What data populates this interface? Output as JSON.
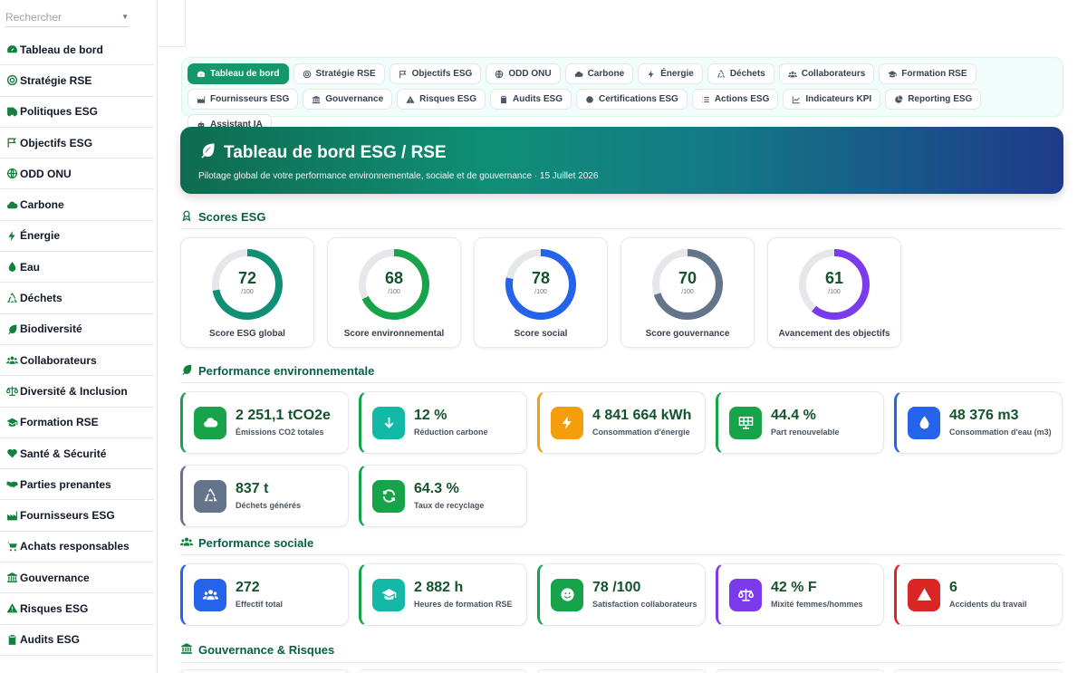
{
  "sidebar": {
    "search_placeholder": "Rechercher",
    "items": [
      {
        "label": "Tableau de bord",
        "icon": "gauge-icon"
      },
      {
        "label": "Stratégie RSE",
        "icon": "target-icon"
      },
      {
        "label": "Politiques ESG",
        "icon": "policy-icon"
      },
      {
        "label": "Objectifs ESG",
        "icon": "flag-icon"
      },
      {
        "label": "ODD ONU",
        "icon": "globe-icon"
      },
      {
        "label": "Carbone",
        "icon": "cloud-icon"
      },
      {
        "label": "Énergie",
        "icon": "bolt-icon"
      },
      {
        "label": "Eau",
        "icon": "droplet-icon"
      },
      {
        "label": "Déchets",
        "icon": "recycle-icon"
      },
      {
        "label": "Biodiversité",
        "icon": "leaf-icon"
      },
      {
        "label": "Collaborateurs",
        "icon": "users-icon"
      },
      {
        "label": "Diversité & Inclusion",
        "icon": "scale-icon"
      },
      {
        "label": "Formation RSE",
        "icon": "graduation-cap-icon"
      },
      {
        "label": "Santé & Sécurité",
        "icon": "heart-pulse-icon"
      },
      {
        "label": "Parties prenantes",
        "icon": "handshake-icon"
      },
      {
        "label": "Fournisseurs ESG",
        "icon": "industry-icon"
      },
      {
        "label": "Achats responsables",
        "icon": "cart-icon"
      },
      {
        "label": "Gouvernance",
        "icon": "landmark-icon"
      },
      {
        "label": "Risques ESG",
        "icon": "warning-icon"
      },
      {
        "label": "Audits ESG",
        "icon": "clipboard-check-icon"
      }
    ]
  },
  "tabs": [
    {
      "label": "Tableau de bord",
      "icon": "gauge-icon",
      "active": true
    },
    {
      "label": "Stratégie RSE",
      "icon": "target-icon"
    },
    {
      "label": "Objectifs ESG",
      "icon": "flag-icon"
    },
    {
      "label": "ODD ONU",
      "icon": "globe-icon"
    },
    {
      "label": "Carbone",
      "icon": "cloud-icon"
    },
    {
      "label": "Énergie",
      "icon": "bolt-icon"
    },
    {
      "label": "Déchets",
      "icon": "recycle-icon"
    },
    {
      "label": "Collaborateurs",
      "icon": "users-icon"
    },
    {
      "label": "Formation RSE",
      "icon": "graduation-cap-icon"
    },
    {
      "label": "Fournisseurs ESG",
      "icon": "industry-icon"
    },
    {
      "label": "Gouvernance",
      "icon": "landmark-icon"
    },
    {
      "label": "Risques ESG",
      "icon": "warning-icon"
    },
    {
      "label": "Audits ESG",
      "icon": "clipboard-check-icon"
    },
    {
      "label": "Certifications ESG",
      "icon": "certificate-icon"
    },
    {
      "label": "Actions ESG",
      "icon": "list-icon"
    },
    {
      "label": "Indicateurs KPI",
      "icon": "chart-line-icon"
    },
    {
      "label": "Reporting ESG",
      "icon": "pie-chart-icon"
    },
    {
      "label": "Assistant IA",
      "icon": "robot-icon"
    }
  ],
  "hero": {
    "title": "Tableau de bord ESG / RSE",
    "subtitle": "Pilotage global de votre performance environnementale, sociale et de gouvernance · 15 Juillet 2026"
  },
  "sections": {
    "scores": "Scores ESG",
    "environment": "Performance environnementale",
    "social": "Performance sociale",
    "governance": "Gouvernance & Risques"
  },
  "scores": [
    {
      "value": "72",
      "max": "/100",
      "label": "Score ESG global",
      "percent": 72,
      "color": "#0f8f76"
    },
    {
      "value": "68",
      "max": "/100",
      "label": "Score environnemental",
      "percent": 68,
      "color": "#16a34a"
    },
    {
      "value": "78",
      "max": "/100",
      "label": "Score social",
      "percent": 78,
      "color": "#2563eb"
    },
    {
      "value": "70",
      "max": "/100",
      "label": "Score gouvernance",
      "percent": 70,
      "color": "#64748b"
    },
    {
      "value": "61",
      "max": "/100",
      "label": "Avancement des objectifs",
      "percent": 61,
      "color": "#7c3aed"
    }
  ],
  "environment_kpis": [
    {
      "value": "2 251,1 tCO2e",
      "label": "Émissions CO2 totales",
      "icon": "cloud-icon",
      "color": "#16a34a",
      "accent": "#16a34a"
    },
    {
      "value": "12 %",
      "label": "Réduction carbone",
      "icon": "arrow-down-icon",
      "color": "#14b8a6",
      "accent": "#16a34a"
    },
    {
      "value": "4 841 664 kWh",
      "label": "Consommation d'énergie",
      "icon": "bolt-icon",
      "color": "#f59e0b",
      "accent": "#f59e0b"
    },
    {
      "value": "44.4 %",
      "label": "Part renouvelable",
      "icon": "solar-panel-icon",
      "color": "#16a34a",
      "accent": "#16a34a"
    },
    {
      "value": "48 376 m3",
      "label": "Consommation d'eau (m3)",
      "icon": "droplet-icon",
      "color": "#2563eb",
      "accent": "#2563eb"
    },
    {
      "value": "837 t",
      "label": "Déchets générés",
      "icon": "recycle-icon",
      "color": "#64748b",
      "accent": "#64748b"
    },
    {
      "value": "64.3 %",
      "label": "Taux de recyclage",
      "icon": "refresh-icon",
      "color": "#16a34a",
      "accent": "#16a34a"
    }
  ],
  "social_kpis": [
    {
      "value": "272",
      "label": "Effectif total",
      "icon": "users-icon",
      "color": "#2563eb",
      "accent": "#2563eb"
    },
    {
      "value": "2 882 h",
      "label": "Heures de formation RSE",
      "icon": "graduation-cap-icon",
      "color": "#14b8a6",
      "accent": "#16a34a"
    },
    {
      "value": "78 /100",
      "label": "Satisfaction collaborateurs",
      "icon": "smile-icon",
      "color": "#16a34a",
      "accent": "#16a34a"
    },
    {
      "value": "42 % F",
      "label": "Mixité femmes/hommes",
      "icon": "scale-icon",
      "color": "#7c3aed",
      "accent": "#7c3aed"
    },
    {
      "value": "6",
      "label": "Accidents du travail",
      "icon": "warning-icon",
      "color": "#dc2626",
      "accent": "#dc2626"
    }
  ]
}
